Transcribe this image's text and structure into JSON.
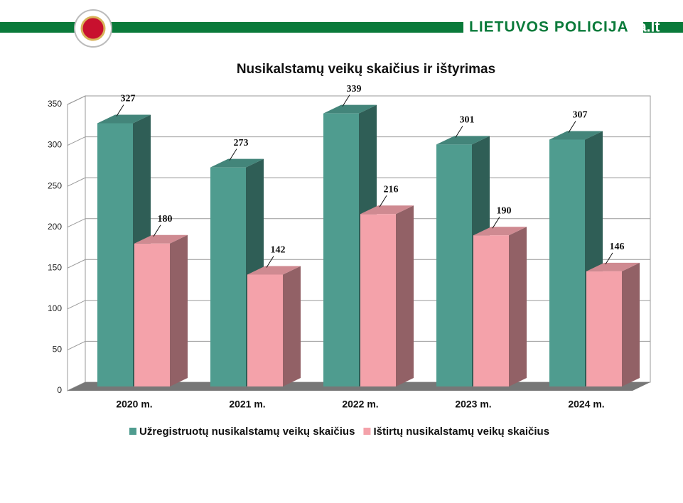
{
  "header": {
    "brand": "LIETUVOS POLICIJA",
    "watermark": "a.lt"
  },
  "chart_data": {
    "type": "bar3d",
    "title": "Nusikalstamų veikų skaičius ir ištyrimas",
    "categories": [
      "2020 m.",
      "2021 m.",
      "2022 m.",
      "2023 m.",
      "2024 m."
    ],
    "series": [
      {
        "name": "Užregistruotų nusikalstamų veikų skaičius",
        "color": "#4f9c8f",
        "values": [
          327,
          273,
          339,
          301,
          307
        ]
      },
      {
        "name": "Ištirtų nusikalstamų veikų skaičius",
        "color": "#f4a2aa",
        "values": [
          180,
          142,
          216,
          190,
          146
        ]
      }
    ],
    "ylim": [
      0,
      350
    ],
    "yticks": [
      0,
      50,
      100,
      150,
      200,
      250,
      300,
      350
    ],
    "grid": true,
    "legend": "bottom"
  }
}
